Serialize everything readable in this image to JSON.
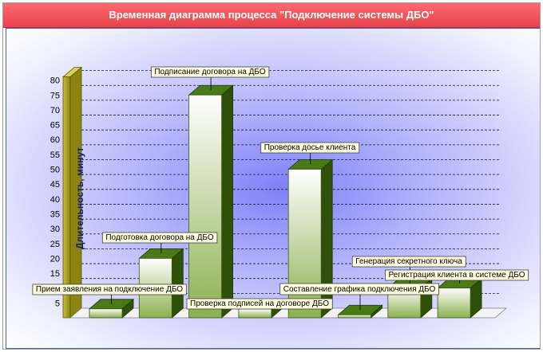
{
  "chart_data": {
    "type": "bar",
    "title": "Временная диаграмма процесса \"Подключение системы ДБО\"",
    "ylabel": "Длительность, минут",
    "xlabel": "",
    "ylim": [
      0,
      80
    ],
    "yticks": [
      5,
      10,
      15,
      20,
      25,
      30,
      35,
      40,
      45,
      50,
      55,
      60,
      65,
      70,
      75,
      80
    ],
    "grid": true,
    "categories": [
      "Прием заявления на подключение ДБО",
      "Подготовка договора на ДБО",
      "Подписание договора на ДБО",
      "Проверка подписей на договоре ДБО",
      "Проверка досье клиента",
      "Составление графика подключения ДБО",
      "Генерация секретного ключа",
      "Регистрация клиента в системе ДБО"
    ],
    "values": [
      3,
      20,
      75,
      3,
      50,
      1,
      10,
      10
    ],
    "colors": {
      "bar_top": "#4a7a18",
      "bar_side": "#2e5008",
      "bar_front_top": "#ffffff",
      "bar_front_bottom": "#8db050",
      "wall": "#a8a020",
      "title_bg": "#e8424a"
    }
  }
}
